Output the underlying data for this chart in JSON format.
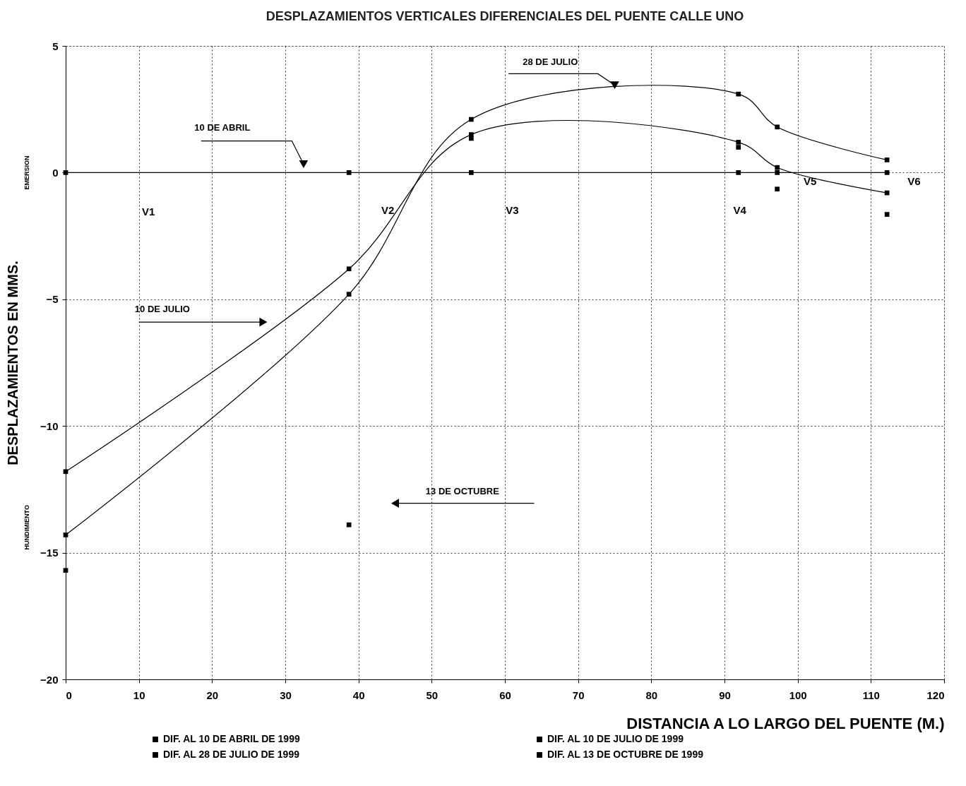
{
  "chart_data": {
    "type": "line",
    "title": "DESPLAZAMIENTOS VERTICALES DIFERENCIALES DEL PUENTE CALLE UNO",
    "xlabel": "DISTANCIA A LO LARGO DEL PUENTE (M.)",
    "ylabel": "DESPLAZAMIENTOS EN MMS.",
    "x": [
      0,
      38.7,
      55.4,
      91.9,
      97.2,
      112.2
    ],
    "series": [
      {
        "name": "DIF. AL 10 DE ABRIL DE 1999",
        "color": "#000000",
        "values": [
          0,
          0,
          0,
          0,
          0,
          0
        ]
      },
      {
        "name": "DIF. AL 10 DE JULIO DE 1999",
        "color": "#000000",
        "values": [
          -11.8,
          -3.8,
          1.5,
          1.2,
          0.2,
          -0.8
        ]
      },
      {
        "name": "DIF. AL 28 DE JULIO DE 1999",
        "color": "#000000",
        "values": [
          -14.3,
          -4.8,
          2.1,
          3.1,
          1.8,
          0.5
        ]
      },
      {
        "name": "DIF. AL 13 DE OCTUBRE DE 1999",
        "color": "#000000",
        "type": "scatter",
        "values": [
          -15.7,
          -13.9,
          1.35,
          1.0,
          -0.65,
          -1.65
        ]
      }
    ],
    "xlim": [
      0,
      120
    ],
    "xticks": [
      0,
      10,
      20,
      30,
      40,
      50,
      60,
      70,
      80,
      90,
      100,
      110,
      120
    ],
    "ylim": [
      -20,
      5
    ],
    "yticks": [
      -20,
      -15,
      -10,
      -5,
      0,
      5
    ],
    "grid": true,
    "legend": "bottom",
    "marker": "square",
    "line_style": "solid",
    "annotations": [
      "10 DE ABRIL",
      "10 DE JULIO",
      "28 DE JULIO",
      "13 DE OCTUBRE",
      "V1",
      "V2",
      "V3",
      "V4",
      "V5",
      "V6",
      "EMERSION",
      "HUNDIMIENTO"
    ]
  }
}
